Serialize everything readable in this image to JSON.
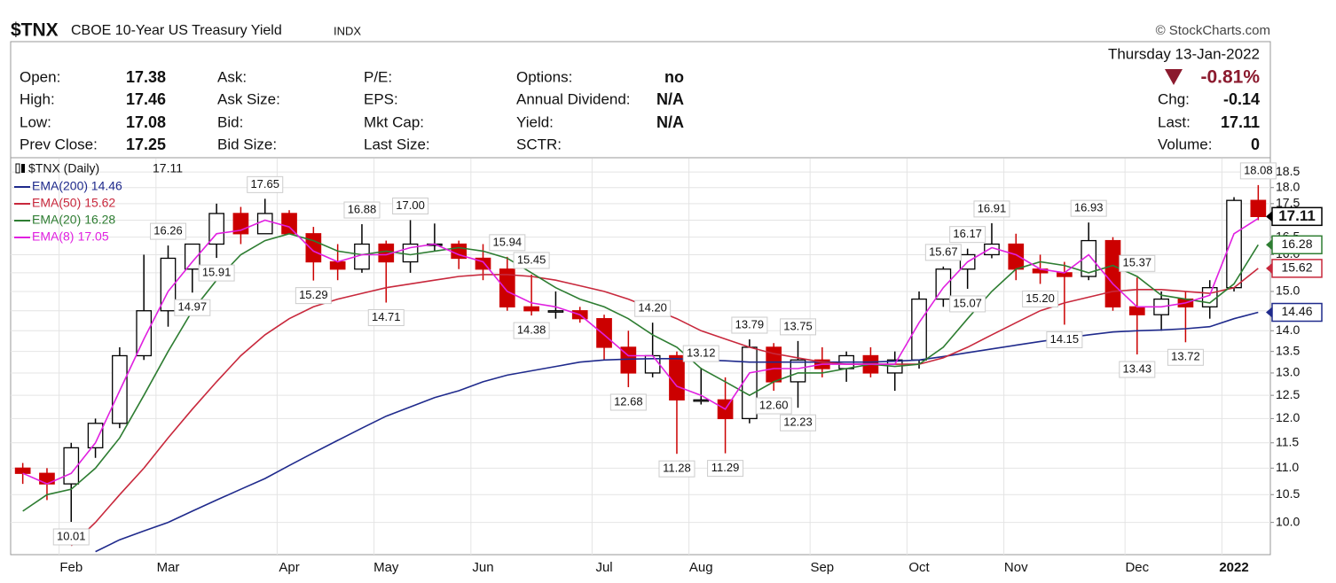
{
  "header": {
    "symbol": "$TNX",
    "name": "CBOE 10-Year US Treasury Yield",
    "exchange": "INDX",
    "credit": "© StockCharts.com"
  },
  "quote": [
    [
      {
        "label": "Open:",
        "value": "17.38"
      },
      {
        "label": "High:",
        "value": "17.46"
      },
      {
        "label": "Low:",
        "value": "17.08"
      },
      {
        "label": "Prev Close:",
        "value": "17.25"
      }
    ],
    [
      {
        "label": "Ask:"
      },
      {
        "label": "Ask Size:"
      },
      {
        "label": "Bid:"
      },
      {
        "label": "Bid Size:"
      }
    ],
    [
      {
        "label": "P/E:"
      },
      {
        "label": "EPS:"
      },
      {
        "label": "Mkt Cap:"
      },
      {
        "label": "Last Size:"
      }
    ],
    [
      {
        "label": "Options:",
        "value": "no"
      },
      {
        "label": "Annual Dividend:",
        "value": "N/A"
      },
      {
        "label": "Yield:",
        "value": "N/A"
      },
      {
        "label": "SCTR:"
      }
    ]
  ],
  "summary": {
    "date": "Thursday 13-Jan-2022",
    "change_pct": "-0.81%",
    "rows": [
      {
        "label": "Chg:",
        "value": "-0.14"
      },
      {
        "label": "Last:",
        "value": "17.11"
      },
      {
        "label": "Volume:",
        "value": "0"
      }
    ]
  },
  "chart_data": {
    "type": "candlestick",
    "title": "$TNX (Daily)",
    "log": true,
    "grid": true,
    "up_color": "#000000",
    "down_color": "#cc0000",
    "categories": [
      null,
      null,
      "Feb",
      null,
      null,
      null,
      "Mar",
      null,
      null,
      null,
      null,
      "Apr",
      null,
      null,
      null,
      "May",
      null,
      null,
      null,
      "Jun",
      null,
      null,
      null,
      null,
      "Jul",
      null,
      null,
      null,
      "Aug",
      null,
      null,
      null,
      null,
      "Sep",
      null,
      null,
      null,
      "Oct",
      null,
      null,
      null,
      "Nov",
      null,
      null,
      null,
      null,
      "Dec",
      null,
      null,
      null,
      "2022",
      null
    ],
    "open": [
      11.0,
      10.9,
      10.7,
      11.4,
      11.9,
      13.4,
      14.5,
      15.6,
      16.3,
      17.2,
      16.6,
      17.2,
      16.6,
      15.8,
      15.6,
      16.3,
      15.8,
      16.3,
      16.3,
      15.9,
      15.6,
      14.6,
      14.5,
      14.5,
      14.3,
      13.6,
      13.0,
      13.4,
      12.4,
      12.4,
      12.0,
      13.6,
      12.8,
      13.3,
      13.1,
      13.4,
      13.0,
      13.3,
      14.8,
      15.6,
      16.0,
      16.3,
      15.6,
      15.5,
      15.4,
      16.4,
      14.6,
      14.4,
      14.8,
      14.6,
      15.1,
      17.6
    ],
    "high": [
      11.1,
      11.0,
      11.5,
      12.0,
      13.6,
      16.0,
      16.26,
      16.3,
      17.5,
      17.4,
      17.65,
      17.3,
      16.8,
      16.3,
      16.88,
      16.4,
      17.0,
      16.9,
      16.4,
      16.3,
      15.94,
      15.45,
      15.0,
      14.6,
      14.4,
      14.0,
      14.2,
      13.5,
      13.12,
      12.9,
      13.79,
      13.7,
      13.75,
      13.6,
      13.5,
      13.6,
      13.5,
      15.0,
      15.67,
      16.17,
      16.91,
      16.6,
      16.0,
      15.8,
      16.93,
      16.5,
      15.37,
      15.0,
      15.0,
      15.3,
      17.7,
      18.08
    ],
    "low": [
      10.7,
      10.4,
      10.01,
      11.2,
      11.8,
      13.3,
      14.1,
      14.97,
      15.91,
      16.3,
      16.6,
      16.6,
      15.29,
      15.3,
      15.5,
      14.71,
      15.5,
      16.1,
      15.6,
      15.3,
      14.5,
      14.38,
      14.3,
      14.2,
      13.3,
      12.68,
      12.9,
      11.28,
      12.3,
      11.29,
      11.9,
      12.6,
      12.23,
      12.9,
      12.8,
      12.9,
      12.6,
      13.1,
      14.6,
      15.07,
      15.9,
      15.3,
      15.2,
      14.15,
      15.3,
      14.5,
      13.43,
      14.0,
      13.72,
      14.3,
      15.0,
      17.0
    ],
    "close": [
      10.9,
      10.7,
      11.4,
      11.9,
      13.4,
      14.5,
      15.9,
      16.3,
      17.2,
      16.6,
      17.2,
      16.6,
      15.8,
      15.6,
      16.3,
      15.8,
      16.3,
      16.3,
      15.9,
      15.6,
      14.6,
      14.5,
      14.5,
      14.3,
      13.6,
      13.0,
      13.4,
      12.4,
      12.4,
      12.0,
      13.6,
      12.8,
      13.3,
      13.1,
      13.4,
      13.0,
      13.3,
      14.8,
      15.6,
      16.0,
      16.3,
      15.6,
      15.5,
      15.4,
      16.4,
      14.6,
      14.4,
      14.8,
      14.6,
      15.1,
      17.6,
      17.11
    ],
    "series": [
      {
        "name": "EMA(200)",
        "color": "#1f2a8c",
        "values": [
          null,
          null,
          null,
          9.5,
          9.7,
          9.85,
          10.0,
          10.2,
          10.4,
          10.6,
          10.8,
          11.05,
          11.3,
          11.55,
          11.8,
          12.05,
          12.25,
          12.45,
          12.6,
          12.8,
          12.95,
          13.05,
          13.15,
          13.25,
          13.3,
          13.32,
          13.33,
          13.33,
          13.3,
          13.28,
          13.25,
          13.25,
          13.25,
          13.25,
          13.25,
          13.25,
          13.27,
          13.3,
          13.38,
          13.47,
          13.56,
          13.65,
          13.74,
          13.82,
          13.9,
          13.97,
          14.0,
          14.02,
          14.05,
          14.1,
          14.3,
          14.46
        ]
      },
      {
        "name": "EMA(50)",
        "color": "#c8283c",
        "values": [
          null,
          null,
          9.6,
          10.0,
          10.5,
          11.0,
          11.6,
          12.2,
          12.8,
          13.4,
          13.9,
          14.3,
          14.6,
          14.8,
          14.95,
          15.1,
          15.2,
          15.3,
          15.4,
          15.45,
          15.45,
          15.4,
          15.3,
          15.15,
          15.0,
          14.8,
          14.55,
          14.3,
          14.0,
          13.8,
          13.6,
          13.45,
          13.35,
          13.25,
          13.2,
          13.2,
          13.2,
          13.2,
          13.35,
          13.6,
          13.9,
          14.2,
          14.5,
          14.7,
          14.85,
          15.0,
          15.05,
          15.05,
          15.0,
          14.95,
          15.1,
          15.62
        ]
      },
      {
        "name": "EMA(20)",
        "color": "#2e7d32",
        "values": [
          10.2,
          10.5,
          10.6,
          11.0,
          11.6,
          12.5,
          13.5,
          14.5,
          15.3,
          16.0,
          16.4,
          16.6,
          16.4,
          16.1,
          16.0,
          16.1,
          16.0,
          16.1,
          16.2,
          16.1,
          15.9,
          15.5,
          15.1,
          14.8,
          14.6,
          14.3,
          13.9,
          13.6,
          13.1,
          12.8,
          12.5,
          12.8,
          13.0,
          13.0,
          13.1,
          13.2,
          13.15,
          13.2,
          13.6,
          14.3,
          15.0,
          15.6,
          15.8,
          15.7,
          15.5,
          15.7,
          15.4,
          14.9,
          14.8,
          14.7,
          15.2,
          16.28
        ]
      },
      {
        "name": "EMA(8)",
        "color": "#e020e0",
        "values": [
          10.9,
          10.7,
          10.9,
          11.5,
          12.6,
          13.8,
          15.0,
          15.8,
          16.6,
          16.7,
          17.0,
          16.8,
          16.1,
          15.8,
          16.0,
          16.0,
          16.2,
          16.3,
          16.0,
          15.8,
          15.0,
          14.7,
          14.6,
          14.4,
          13.9,
          13.4,
          13.4,
          12.7,
          12.5,
          12.2,
          13.0,
          13.1,
          13.1,
          13.2,
          13.2,
          13.2,
          13.2,
          14.2,
          15.1,
          15.8,
          16.2,
          16.0,
          15.6,
          15.5,
          16.0,
          15.2,
          14.6,
          14.6,
          14.7,
          14.9,
          16.6,
          17.05
        ]
      }
    ],
    "annotations": [
      10.01,
      16.26,
      14.97,
      15.91,
      17.65,
      15.29,
      16.88,
      14.71,
      {
        "value": 17.0,
        "label": "17.00"
      },
      15.94,
      15.45,
      14.38,
      12.68,
      {
        "value": 14.2,
        "label": "14.20"
      },
      11.28,
      13.12,
      11.29,
      13.79,
      12.23,
      13.75,
      {
        "value": 12.6,
        "label": "12.60"
      },
      15.67,
      16.17,
      15.07,
      16.91,
      {
        "value": 15.2,
        "label": "15.20"
      },
      14.15,
      16.93,
      15.37,
      13.43,
      13.72,
      18.08
    ],
    "ylim": [
      9.45,
      18.94
    ],
    "yticks": [
      {
        "value": 10,
        "label": "10.0"
      },
      10.5,
      {
        "value": 11,
        "label": "11.0"
      },
      11.5,
      {
        "value": 12,
        "label": "12.0"
      },
      12.5,
      {
        "value": 13,
        "label": "13.0"
      },
      13.5,
      {
        "value": 14,
        "label": "14.0"
      },
      14.5,
      {
        "value": 15,
        "label": "15.0"
      },
      15.5,
      {
        "value": 16,
        "label": "16.0"
      },
      16.5,
      {
        "value": 17,
        "label": "17.0"
      },
      17.5,
      {
        "value": 18,
        "label": "18.0"
      },
      18.5
    ]
  }
}
